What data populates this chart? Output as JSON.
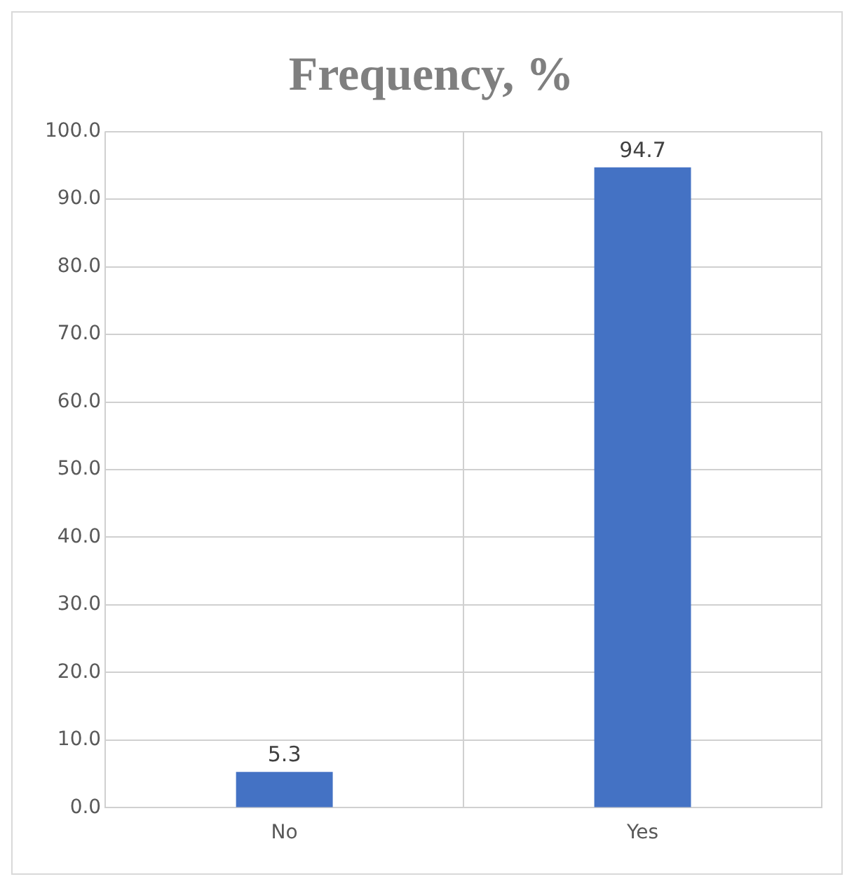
{
  "chart_data": {
    "type": "bar",
    "title": "Frequency, %",
    "categories": [
      "No",
      "Yes"
    ],
    "values": [
      5.3,
      94.7
    ],
    "color": "#4472c4",
    "ylim": [
      0,
      100
    ],
    "yticks": [
      {
        "value": 0,
        "label": "0.0"
      },
      {
        "value": 10,
        "label": "10.0"
      },
      {
        "value": 20,
        "label": "20.0"
      },
      {
        "value": 30,
        "label": "30.0"
      },
      {
        "value": 40,
        "label": "40.0"
      },
      {
        "value": 50,
        "label": "50.0"
      },
      {
        "value": 60,
        "label": "60.0"
      },
      {
        "value": 70,
        "label": "70.0"
      },
      {
        "value": 80,
        "label": "80.0"
      },
      {
        "value": 90,
        "label": "90.0"
      },
      {
        "value": 100,
        "label": "100.0"
      }
    ],
    "grid": true,
    "data_labels": true
  }
}
